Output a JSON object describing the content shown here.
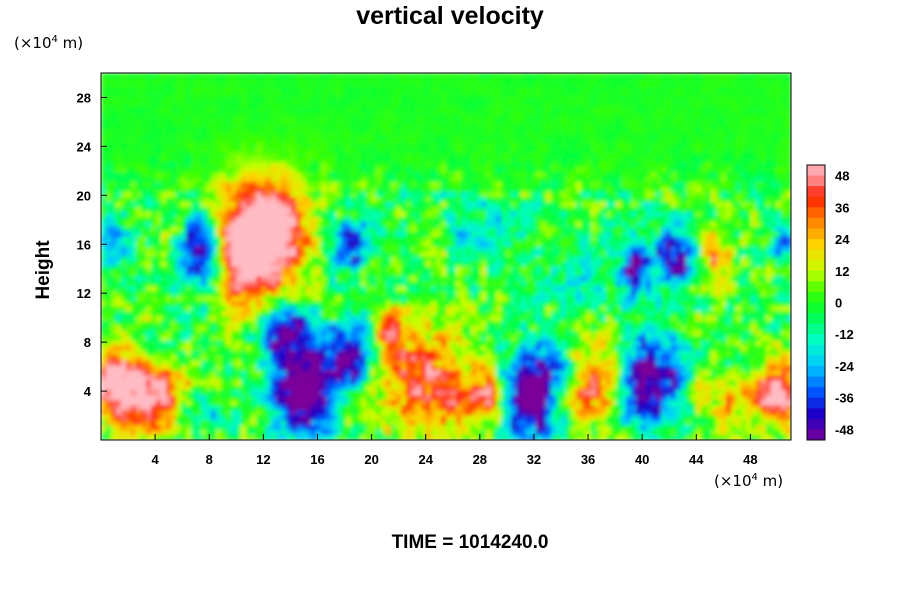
{
  "title": "vertical velocity",
  "footer": {
    "time_label": "TIME = 1014240.0"
  },
  "y_unit": {
    "prefix": "(×10",
    "exp": "4",
    "suffix": " m)"
  },
  "x_unit": {
    "prefix": "(×10",
    "exp": "4",
    "suffix": " m)"
  },
  "chart_data": {
    "type": "heatmap",
    "title": "vertical velocity",
    "xlabel": "",
    "ylabel": "Height",
    "xlim": [
      0,
      51
    ],
    "ylim": [
      0,
      30
    ],
    "xticks": [
      4,
      8,
      12,
      16,
      20,
      24,
      28,
      32,
      36,
      40,
      44,
      48
    ],
    "yticks": [
      4,
      8,
      12,
      16,
      20,
      24,
      28
    ],
    "colorbar": {
      "ticks": [
        48,
        36,
        24,
        12,
        0,
        -12,
        -24,
        -36,
        -48
      ],
      "range": [
        -52,
        52
      ],
      "stops": [
        {
          "v": -52,
          "color": "#7a0099"
        },
        {
          "v": -42,
          "color": "#1a00c8"
        },
        {
          "v": -34,
          "color": "#0055ff"
        },
        {
          "v": -24,
          "color": "#00c8ff"
        },
        {
          "v": -14,
          "color": "#00ffc0"
        },
        {
          "v": -4,
          "color": "#00ff40"
        },
        {
          "v": 4,
          "color": "#3cff00"
        },
        {
          "v": 12,
          "color": "#c8ff00"
        },
        {
          "v": 22,
          "color": "#ffd200"
        },
        {
          "v": 32,
          "color": "#ff7800"
        },
        {
          "v": 40,
          "color": "#ff1e00"
        },
        {
          "v": 46,
          "color": "#ff8080"
        },
        {
          "v": 52,
          "color": "#ffbcc4"
        }
      ]
    },
    "features": [
      {
        "x": 12,
        "z": 17,
        "sx": 2.2,
        "sz": 3.0,
        "w": 70
      },
      {
        "x": 10.5,
        "z": 14,
        "sx": 1.5,
        "sz": 3.5,
        "w": 30
      },
      {
        "x": 7.5,
        "z": 15.5,
        "sx": 1.0,
        "sz": 2.0,
        "w": -62
      },
      {
        "x": 3.5,
        "z": 3.5,
        "sx": 2.0,
        "sz": 1.8,
        "w": 58
      },
      {
        "x": 0.8,
        "z": 5.0,
        "sx": 1.2,
        "sz": 2.0,
        "w": 42
      },
      {
        "x": 15,
        "z": 4.0,
        "sx": 1.6,
        "sz": 2.6,
        "w": -68
      },
      {
        "x": 13.5,
        "z": 9.0,
        "sx": 1.6,
        "sz": 1.5,
        "w": -44
      },
      {
        "x": 18.5,
        "z": 7.0,
        "sx": 1.2,
        "sz": 2.0,
        "w": -55
      },
      {
        "x": 18.5,
        "z": 16.0,
        "sx": 1.0,
        "sz": 1.5,
        "w": -42
      },
      {
        "x": 24,
        "z": 4.5,
        "sx": 2.8,
        "sz": 2.8,
        "w": 42
      },
      {
        "x": 28.5,
        "z": 3.5,
        "sx": 0.8,
        "sz": 1.5,
        "w": 38
      },
      {
        "x": 32,
        "z": 3.8,
        "sx": 1.6,
        "sz": 2.6,
        "w": -68
      },
      {
        "x": 37,
        "z": 5.5,
        "sx": 1.4,
        "sz": 2.5,
        "w": 36
      },
      {
        "x": 40.5,
        "z": 5.0,
        "sx": 2.0,
        "sz": 2.5,
        "w": -56
      },
      {
        "x": 39.5,
        "z": 14.0,
        "sx": 0.8,
        "sz": 1.5,
        "w": -42
      },
      {
        "x": 42.5,
        "z": 15.0,
        "sx": 1.0,
        "sz": 1.8,
        "w": -50
      },
      {
        "x": 45.5,
        "z": 15.0,
        "sx": 0.8,
        "sz": 1.5,
        "w": 30
      },
      {
        "x": 46,
        "z": 3.5,
        "sx": 2.0,
        "sz": 1.5,
        "w": 24
      },
      {
        "x": 50,
        "z": 3.8,
        "sx": 1.0,
        "sz": 1.8,
        "w": 56
      },
      {
        "x": 21.5,
        "z": 8.5,
        "sx": 0.8,
        "sz": 1.5,
        "w": 38
      },
      {
        "x": 35,
        "z": 3.0,
        "sx": 1.5,
        "sz": 1.2,
        "w": 26
      },
      {
        "x": 7,
        "z": 2.5,
        "sx": 1.5,
        "sz": 1.0,
        "w": -26
      },
      {
        "x": 1.0,
        "z": 16.0,
        "sx": 0.8,
        "sz": 1.2,
        "w": -32
      },
      {
        "x": 50.5,
        "z": 16.5,
        "sx": 0.6,
        "sz": 1.2,
        "w": -30
      },
      {
        "x": 29,
        "z": 17.5,
        "sx": 2.5,
        "sz": 1.5,
        "w": -18
      },
      {
        "x": 36,
        "z": 13.0,
        "sx": 3.0,
        "sz": 2.0,
        "w": -14
      }
    ]
  }
}
